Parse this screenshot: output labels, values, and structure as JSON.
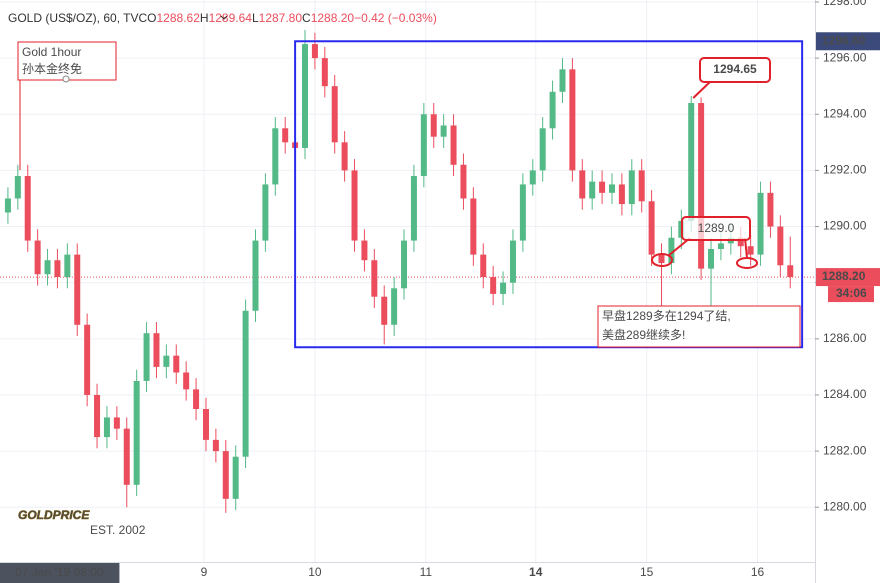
{
  "chart_data": {
    "type": "candlestick",
    "header": {
      "symbol": "GOLD (US$/OZ), 60, TVC",
      "o_label": "O",
      "o": "1288.62",
      "h_label": "H",
      "h": "1289.64",
      "l_label": "L",
      "l": "1287.80",
      "c_label": "C",
      "c": "1288.20",
      "change": "−0.42 (−0.03%)"
    },
    "x": [
      0,
      1,
      2,
      3,
      4,
      5,
      6,
      7,
      8,
      9,
      10,
      11,
      12,
      13,
      14,
      15,
      16,
      17,
      18,
      19,
      20,
      21,
      22,
      23,
      24,
      25,
      26,
      27,
      28,
      29,
      30,
      31,
      32,
      33,
      34,
      35,
      36,
      37,
      38,
      39,
      40,
      41,
      42,
      43,
      44,
      45,
      46,
      47,
      48,
      49,
      50,
      51,
      52,
      53,
      54,
      55,
      56,
      57,
      58,
      59,
      60,
      61,
      62,
      63,
      64,
      65,
      66,
      67,
      68,
      69,
      70,
      71,
      72,
      73,
      74,
      75,
      76,
      77,
      78,
      79
    ],
    "open": [
      1290.5,
      1291.0,
      1291.8,
      1289.5,
      1288.3,
      1288.8,
      1288.2,
      1289.0,
      1286.5,
      1284.0,
      1282.5,
      1283.2,
      1282.8,
      1280.8,
      1284.5,
      1286.2,
      1285.0,
      1285.4,
      1284.8,
      1284.2,
      1283.5,
      1282.4,
      1282.0,
      1280.3,
      1281.8,
      1287.0,
      1289.5,
      1291.5,
      1293.5,
      1293.0,
      1292.8,
      1296.5,
      1296.0,
      1295.0,
      1293.0,
      1292.0,
      1289.5,
      1288.8,
      1287.5,
      1286.5,
      1287.8,
      1289.5,
      1291.8,
      1294.0,
      1293.2,
      1293.6,
      1292.2,
      1291.0,
      1289.0,
      1288.2,
      1287.6,
      1288.0,
      1289.5,
      1291.5,
      1292.0,
      1293.5,
      1294.8,
      1295.6,
      1292.0,
      1291.0,
      1291.6,
      1291.2,
      1291.5,
      1290.8,
      1292.0,
      1290.9,
      1289.0,
      1288.7,
      1289.6,
      1290.2,
      1294.4,
      1288.5,
      1289.2,
      1289.4,
      1289.6,
      1289.3,
      1289.0,
      1291.2,
      1290.0,
      1288.62
    ],
    "high": [
      1291.4,
      1292.2,
      1292.2,
      1289.9,
      1289.2,
      1289.2,
      1289.4,
      1289.4,
      1286.9,
      1284.4,
      1283.6,
      1283.6,
      1283.2,
      1284.9,
      1286.6,
      1286.6,
      1285.8,
      1285.8,
      1285.2,
      1284.6,
      1283.9,
      1282.8,
      1282.4,
      1282.2,
      1287.4,
      1289.9,
      1291.9,
      1293.9,
      1293.9,
      1293.4,
      1297.0,
      1296.9,
      1296.4,
      1295.4,
      1293.4,
      1292.4,
      1289.9,
      1289.2,
      1287.9,
      1288.2,
      1289.9,
      1292.2,
      1294.4,
      1294.4,
      1294.0,
      1294.0,
      1292.6,
      1291.4,
      1289.4,
      1288.6,
      1288.4,
      1289.9,
      1291.9,
      1292.4,
      1293.9,
      1295.2,
      1296.0,
      1296.0,
      1292.4,
      1292.0,
      1292.0,
      1291.9,
      1291.9,
      1292.4,
      1292.4,
      1291.3,
      1289.4,
      1290.0,
      1290.6,
      1294.65,
      1294.6,
      1289.6,
      1289.8,
      1290.0,
      1290.0,
      1289.7,
      1291.6,
      1291.6,
      1290.4,
      1289.64
    ],
    "low": [
      1290.1,
      1290.6,
      1289.1,
      1287.9,
      1287.9,
      1287.8,
      1287.8,
      1286.1,
      1283.6,
      1282.1,
      1282.1,
      1282.4,
      1280.0,
      1280.4,
      1284.1,
      1284.6,
      1284.6,
      1284.4,
      1283.8,
      1283.1,
      1282.0,
      1281.6,
      1279.8,
      1279.9,
      1281.4,
      1286.6,
      1289.1,
      1291.1,
      1292.6,
      1292.4,
      1292.4,
      1295.6,
      1294.6,
      1292.6,
      1291.6,
      1289.1,
      1288.4,
      1287.1,
      1285.8,
      1286.1,
      1287.4,
      1289.1,
      1291.4,
      1292.8,
      1292.8,
      1291.8,
      1290.6,
      1288.6,
      1287.8,
      1287.2,
      1287.2,
      1287.6,
      1289.1,
      1291.1,
      1291.6,
      1293.1,
      1294.4,
      1291.6,
      1290.6,
      1290.6,
      1290.8,
      1290.8,
      1290.4,
      1290.4,
      1290.5,
      1288.6,
      1287.0,
      1288.3,
      1289.2,
      1289.8,
      1288.1,
      1287.0,
      1288.8,
      1289.0,
      1288.9,
      1288.6,
      1288.6,
      1289.6,
      1288.2,
      1287.8
    ],
    "close": [
      1291.0,
      1291.8,
      1289.5,
      1288.3,
      1288.8,
      1288.2,
      1289.0,
      1286.5,
      1284.0,
      1282.5,
      1283.2,
      1282.8,
      1280.8,
      1284.5,
      1286.2,
      1285.0,
      1285.4,
      1284.8,
      1284.2,
      1283.5,
      1282.4,
      1282.0,
      1280.3,
      1281.8,
      1287.0,
      1289.5,
      1291.5,
      1293.5,
      1293.0,
      1292.8,
      1296.5,
      1296.0,
      1295.0,
      1293.0,
      1292.0,
      1289.5,
      1288.8,
      1287.5,
      1286.5,
      1287.8,
      1289.5,
      1291.8,
      1294.0,
      1293.2,
      1293.6,
      1292.2,
      1291.0,
      1289.0,
      1288.2,
      1287.6,
      1288.0,
      1289.5,
      1291.5,
      1292.0,
      1293.5,
      1294.8,
      1295.6,
      1292.0,
      1291.0,
      1291.6,
      1291.2,
      1291.5,
      1290.8,
      1292.0,
      1290.9,
      1289.0,
      1288.7,
      1289.6,
      1290.2,
      1294.4,
      1288.5,
      1289.2,
      1289.4,
      1289.6,
      1289.3,
      1289.0,
      1291.2,
      1290.0,
      1288.62,
      1288.2
    ],
    "up_color": "#53b987",
    "down_color": "#eb4d5c",
    "xlim": [
      -0.8,
      81.5
    ],
    "xticks": [
      {
        "value": 19.8,
        "label": "9"
      },
      {
        "value": 31,
        "label": "10"
      },
      {
        "value": 42.2,
        "label": "11"
      },
      {
        "value": 53.3,
        "label": "14"
      },
      {
        "value": 64.5,
        "label": "15"
      },
      {
        "value": 75.7,
        "label": "16"
      }
    ],
    "crosshair": {
      "x": 5.2,
      "label": "07 Jan '19   08:00"
    },
    "ylim": [
      1278.05,
      1298.07
    ],
    "yticks": [
      {
        "value": 1280,
        "label": "1280.00"
      },
      {
        "value": 1282,
        "label": "1282.00"
      },
      {
        "value": 1284,
        "label": "1284.00"
      },
      {
        "value": 1286,
        "label": "1286.00"
      },
      {
        "value": 1288,
        "label": "1288.00"
      },
      {
        "value": 1290,
        "label": "1290.00"
      },
      {
        "value": 1292,
        "label": "1292.00"
      },
      {
        "value": 1294,
        "label": "1294.00"
      },
      {
        "value": 1296,
        "label": "1296.00"
      },
      {
        "value": 1298,
        "label": "1298.00"
      }
    ],
    "grid": true,
    "last_price": {
      "value": 1288.2,
      "label": "1288.20",
      "countdown": "34:06"
    },
    "range_box": {
      "top": {
        "value": 1296.6,
        "label": "1296.60"
      },
      "bottom": 1285.7,
      "x0": 29,
      "x1": 80.2
    },
    "annotations": {
      "title": "Gold 1hour",
      "author": "孙本金终免",
      "peak": 1294.65,
      "entry": "1289.0",
      "note_line1": "早盘1289多在1294了结,",
      "note_line2": "美盘289继续多!"
    },
    "watermark": {
      "brand": "GOLDPRICE",
      "est": "EST. 2002"
    }
  }
}
